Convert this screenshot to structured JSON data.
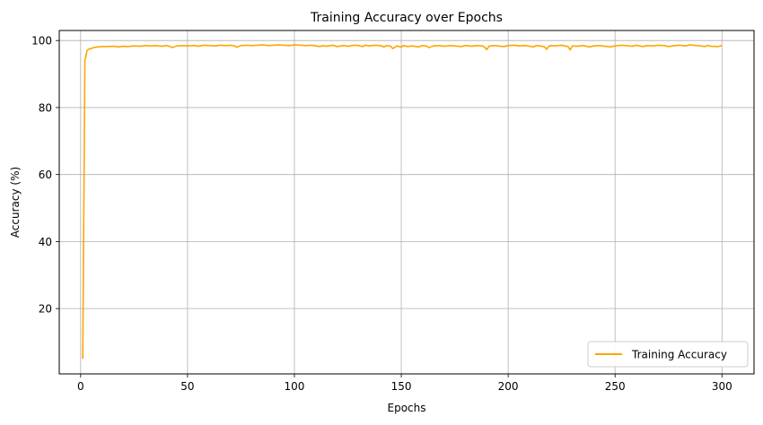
{
  "chart_data": {
    "type": "line",
    "title": "Training Accuracy over Epochs",
    "xlabel": "Epochs",
    "ylabel": "Accuracy (%)",
    "xlim": [
      -10.0,
      315.0
    ],
    "ylim": [
      0.5,
      103.0
    ],
    "xticks": [
      0,
      50,
      100,
      150,
      200,
      250,
      300
    ],
    "yticks": [
      20,
      40,
      60,
      80,
      100
    ],
    "grid": true,
    "legend_position": "lower-right",
    "series": [
      {
        "name": "Training Accuracy",
        "color": "#ffa500",
        "x": [
          1,
          2,
          3,
          4,
          5,
          6,
          8,
          10,
          12,
          15,
          18,
          20,
          22,
          25,
          28,
          30,
          33,
          35,
          38,
          40,
          42,
          43,
          45,
          48,
          50,
          53,
          55,
          58,
          60,
          63,
          65,
          68,
          70,
          72,
          73,
          75,
          78,
          80,
          83,
          85,
          88,
          90,
          93,
          95,
          98,
          100,
          103,
          105,
          108,
          110,
          112,
          113,
          115,
          118,
          120,
          123,
          125,
          128,
          130,
          132,
          133,
          135,
          138,
          140,
          142,
          143,
          145,
          146,
          148,
          150,
          151,
          153,
          155,
          158,
          160,
          162,
          163,
          165,
          168,
          170,
          173,
          175,
          178,
          180,
          183,
          185,
          188,
          189,
          190,
          191,
          193,
          195,
          198,
          200,
          203,
          205,
          208,
          210,
          212,
          213,
          215,
          217,
          218,
          219,
          220,
          222,
          225,
          228,
          229,
          230,
          232,
          235,
          238,
          240,
          243,
          245,
          248,
          250,
          253,
          255,
          258,
          260,
          263,
          265,
          268,
          270,
          273,
          275,
          278,
          280,
          283,
          285,
          288,
          290,
          292,
          293,
          295,
          298,
          300
        ],
        "values": [
          5.0,
          94.0,
          97.0,
          97.5,
          97.6,
          97.9,
          98.1,
          98.2,
          98.2,
          98.3,
          98.1,
          98.3,
          98.2,
          98.4,
          98.3,
          98.5,
          98.4,
          98.5,
          98.3,
          98.5,
          98.2,
          97.9,
          98.4,
          98.5,
          98.4,
          98.5,
          98.3,
          98.6,
          98.5,
          98.4,
          98.6,
          98.5,
          98.6,
          98.4,
          98.0,
          98.5,
          98.6,
          98.5,
          98.6,
          98.7,
          98.5,
          98.6,
          98.7,
          98.6,
          98.5,
          98.7,
          98.6,
          98.5,
          98.6,
          98.4,
          98.2,
          98.5,
          98.3,
          98.6,
          98.2,
          98.5,
          98.3,
          98.6,
          98.5,
          98.2,
          98.6,
          98.4,
          98.6,
          98.5,
          98.1,
          98.5,
          98.3,
          97.6,
          98.4,
          98.0,
          98.5,
          98.2,
          98.4,
          98.1,
          98.5,
          98.3,
          97.9,
          98.4,
          98.5,
          98.3,
          98.5,
          98.4,
          98.2,
          98.5,
          98.3,
          98.5,
          98.4,
          98.0,
          97.3,
          98.3,
          98.5,
          98.4,
          98.2,
          98.5,
          98.6,
          98.4,
          98.5,
          98.3,
          98.1,
          98.5,
          98.4,
          98.1,
          97.4,
          98.3,
          98.5,
          98.4,
          98.6,
          98.2,
          97.2,
          98.4,
          98.3,
          98.5,
          98.1,
          98.4,
          98.5,
          98.3,
          98.1,
          98.4,
          98.6,
          98.5,
          98.3,
          98.6,
          98.2,
          98.5,
          98.4,
          98.6,
          98.5,
          98.2,
          98.5,
          98.6,
          98.4,
          98.7,
          98.5,
          98.4,
          98.2,
          98.5,
          98.3,
          98.2,
          98.5
        ]
      }
    ]
  }
}
